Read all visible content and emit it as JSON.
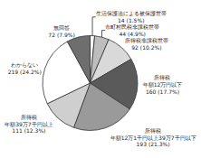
{
  "chart_data": {
    "type": "pie",
    "categories": [
      "生活保護法による被保護世帯",
      "市町村民税非課税世帯",
      "所得税非課税世帯",
      "所得税 年額12万円以下",
      "所得税 年額12万1千円以上39万7千円以下",
      "所得税 年額39万7千円以上",
      "わからない",
      "無回答"
    ],
    "values": [
      14,
      44,
      92,
      160,
      193,
      111,
      219,
      72
    ],
    "value_labels": [
      "14 (1.5%)",
      "44 (4.9%)",
      "92 (10.2%)",
      "160 (17.7%)",
      "193 (21.3%)",
      "111 (12.3%)",
      "219 (24.2%)",
      "72 (7.9%)"
    ],
    "colors": [
      "#f4f4f4",
      "#bdbdbd",
      "#d9d9d9",
      "#5a5a5a",
      "#9a9a9a",
      "#cfcfcf",
      "#ffffff",
      "#6e6e6e"
    ],
    "data_labels": true
  }
}
